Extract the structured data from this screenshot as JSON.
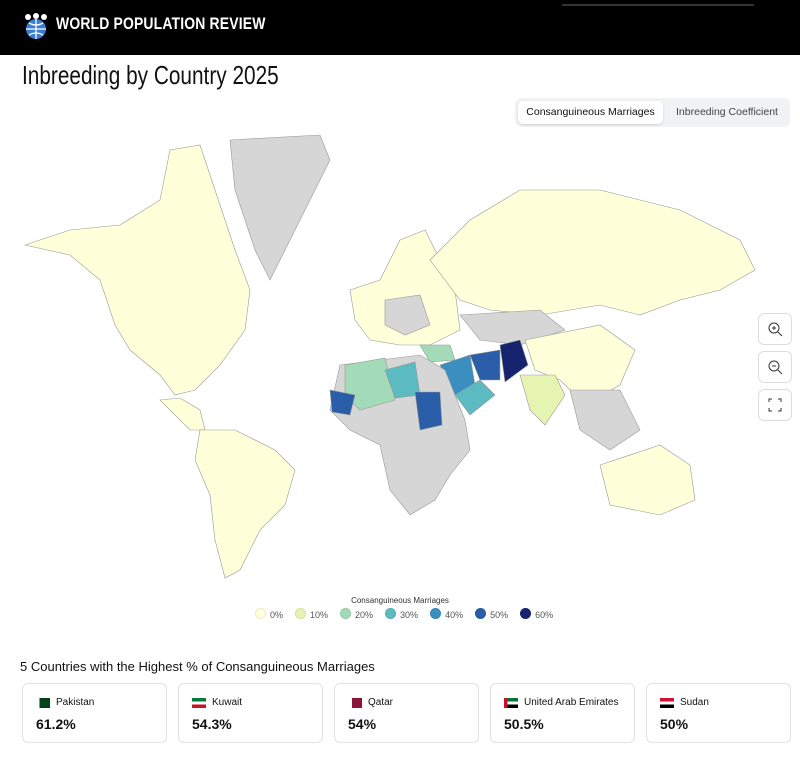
{
  "header": {
    "brand": "WORLD POPULATION REVIEW"
  },
  "title": "Inbreeding by Country 2025",
  "tabs": [
    "Consanguineous Marriages",
    "Inbreeding Coefficient"
  ],
  "legend": {
    "title": "Consanguineous Marriages",
    "items": [
      {
        "label": "0%",
        "color": "#ffffd9"
      },
      {
        "label": "10%",
        "color": "#e6f4b1"
      },
      {
        "label": "20%",
        "color": "#a3dbb8"
      },
      {
        "label": "30%",
        "color": "#5cbac1"
      },
      {
        "label": "40%",
        "color": "#3a8fc0"
      },
      {
        "label": "50%",
        "color": "#2a5ea8"
      },
      {
        "label": "60%",
        "color": "#16236e"
      }
    ]
  },
  "top": {
    "heading": "5 Countries with the Highest % of Consanguineous Marriages",
    "cards": [
      {
        "country": "Pakistan",
        "value": "61.2%"
      },
      {
        "country": "Kuwait",
        "value": "54.3%"
      },
      {
        "country": "Qatar",
        "value": "54%"
      },
      {
        "country": "United Arab Emirates",
        "value": "50.5%"
      },
      {
        "country": "Sudan",
        "value": "50%"
      }
    ]
  }
}
